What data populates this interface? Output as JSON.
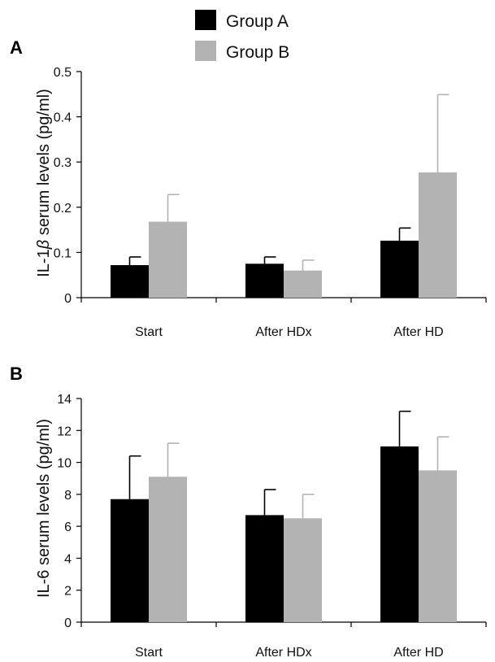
{
  "legend": {
    "position": "top-center",
    "entries": [
      {
        "label": "Group A",
        "color": "#000000"
      },
      {
        "label": "Group B",
        "color": "#b3b3b3"
      }
    ]
  },
  "chart_data": [
    {
      "panel": "A",
      "type": "bar",
      "title": "",
      "xlabel": "",
      "ylabel_prefix": "IL-1",
      "ylabel_symbol": "β",
      "ylabel_suffix": " serum levels (pg/ml)",
      "ylabel": "IL-1β serum levels (pg/ml)",
      "ylim": [
        0,
        0.5
      ],
      "yticks": [
        0,
        0.1,
        0.2,
        0.3,
        0.4,
        0.5
      ],
      "ytick_labels": [
        "0",
        "0.1",
        "0.2",
        "0.3",
        "0.4",
        "0.5"
      ],
      "grid": false,
      "categories": [
        "Start",
        "After HDx",
        "After HD"
      ],
      "series": [
        {
          "name": "Group A",
          "color": "#000000",
          "values": [
            0.072,
            0.075,
            0.126
          ],
          "errors": [
            0.018,
            0.015,
            0.028
          ]
        },
        {
          "name": "Group B",
          "color": "#b3b3b3",
          "values": [
            0.168,
            0.06,
            0.277
          ],
          "errors": [
            0.06,
            0.023,
            0.172
          ]
        }
      ]
    },
    {
      "panel": "B",
      "type": "bar",
      "title": "",
      "xlabel": "",
      "ylabel_prefix": "IL-6",
      "ylabel_symbol": "",
      "ylabel_suffix": "  serum levels (pg/ml)",
      "ylabel": "IL-6 serum levels (pg/ml)",
      "ylim": [
        0,
        14
      ],
      "yticks": [
        0,
        2,
        4,
        6,
        8,
        10,
        12,
        14
      ],
      "ytick_labels": [
        "0",
        "2",
        "4",
        "6",
        "8",
        "10",
        "12",
        "14"
      ],
      "grid": false,
      "categories": [
        "Start",
        "After HDx",
        "After HD"
      ],
      "series": [
        {
          "name": "Group A",
          "color": "#000000",
          "values": [
            7.7,
            6.7,
            11.0
          ],
          "errors": [
            2.7,
            1.6,
            2.2
          ]
        },
        {
          "name": "Group B",
          "color": "#b3b3b3",
          "values": [
            9.1,
            6.5,
            9.5
          ],
          "errors": [
            2.1,
            1.5,
            2.1
          ]
        }
      ]
    }
  ]
}
